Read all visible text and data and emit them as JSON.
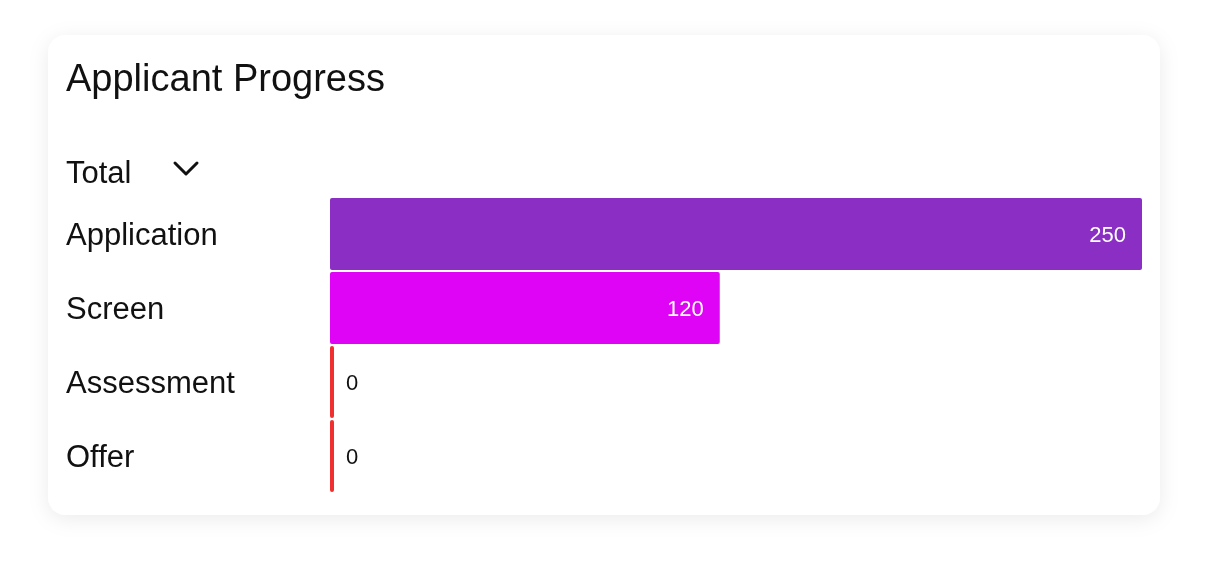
{
  "chart_data": {
    "type": "bar",
    "orientation": "horizontal",
    "title": "Applicant Progress",
    "subtitle": "Total",
    "categories": [
      "Application",
      "Screen",
      "Assessment",
      "Offer"
    ],
    "values": [
      250,
      120,
      0,
      0
    ],
    "colors": [
      "#8a2ec4",
      "#e004f7",
      "#f03030",
      "#f03030"
    ],
    "data_labels": true
  }
}
